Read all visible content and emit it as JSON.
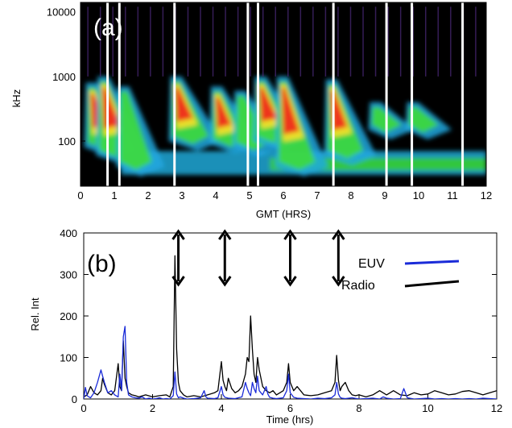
{
  "chart_data": [
    {
      "type": "heatmap",
      "panel_label": "(a)",
      "xlabel": "GMT (HRS)",
      "ylabel": "kHz",
      "xlim": [
        0,
        12
      ],
      "ylim": [
        20,
        14000
      ],
      "yscale": "log",
      "xticks": [
        "0",
        "1",
        "2",
        "3",
        "4",
        "5",
        "6",
        "7",
        "8",
        "9",
        "10",
        "11",
        "12"
      ],
      "yticks": [
        "100",
        "1000",
        "10000"
      ],
      "ytick_values": [
        100,
        1000,
        10000
      ],
      "colormap": "rainbow",
      "background_color": "#000000",
      "bursts": [
        {
          "t": 0.3,
          "f_hi": 800,
          "f_lo": 80,
          "strength": 0.8
        },
        {
          "t": 0.65,
          "f_hi": 1000,
          "f_lo": 60,
          "strength": 1.0
        },
        {
          "t": 1.25,
          "f_hi": 700,
          "f_lo": 40,
          "strength": 0.6
        },
        {
          "t": 2.8,
          "f_hi": 1000,
          "f_lo": 100,
          "strength": 1.0
        },
        {
          "t": 4.0,
          "f_hi": 700,
          "f_lo": 90,
          "strength": 0.8
        },
        {
          "t": 4.7,
          "f_hi": 600,
          "f_lo": 80,
          "strength": 0.7
        },
        {
          "t": 5.3,
          "f_hi": 1000,
          "f_lo": 100,
          "strength": 1.0
        },
        {
          "t": 5.95,
          "f_hi": 1000,
          "f_lo": 40,
          "strength": 1.0
        },
        {
          "t": 7.4,
          "f_hi": 900,
          "f_lo": 60,
          "strength": 0.9
        },
        {
          "t": 8.7,
          "f_hi": 400,
          "f_lo": 150,
          "strength": 0.4
        },
        {
          "t": 9.8,
          "f_hi": 400,
          "f_lo": 150,
          "strength": 0.4
        }
      ],
      "data_gaps": [
        0.8,
        1.15,
        2.78,
        4.95,
        5.25,
        7.48,
        9.05,
        9.8,
        11.3
      ]
    },
    {
      "type": "line",
      "panel_label": "(b)",
      "xlabel": "Time (hrs)",
      "ylabel": "Rel. Int",
      "xlim": [
        0,
        12
      ],
      "ylim": [
        0,
        400
      ],
      "xticks": [
        "0",
        "2",
        "4",
        "6",
        "8",
        "10",
        "12"
      ],
      "yticks": [
        "0",
        "100",
        "200",
        "300",
        "400"
      ],
      "legend_position": "top-right",
      "series": [
        {
          "name": "EUV",
          "color": "#1a2bd8",
          "x": [
            0,
            0.05,
            0.1,
            0.15,
            0.2,
            0.3,
            0.4,
            0.5,
            0.55,
            0.6,
            0.7,
            0.8,
            0.9,
            1.0,
            1.05,
            1.1,
            1.15,
            1.2,
            1.25,
            1.3,
            1.4,
            1.5,
            1.6,
            1.7,
            1.8,
            1.9,
            2.0,
            2.1,
            2.2,
            2.3,
            2.4,
            2.5,
            2.6,
            2.65,
            2.7,
            2.75,
            2.8,
            2.9,
            3.0,
            3.2,
            3.4,
            3.5,
            3.55,
            3.6,
            3.8,
            3.9,
            4.0,
            4.05,
            4.1,
            4.2,
            4.4,
            4.6,
            4.7,
            4.75,
            4.8,
            4.85,
            4.9,
            4.95,
            5.0,
            5.05,
            5.1,
            5.2,
            5.3,
            5.35,
            5.4,
            5.5,
            5.6,
            5.8,
            5.9,
            5.95,
            6.0,
            6.1,
            6.2,
            6.4,
            6.6,
            6.8,
            7.0,
            7.2,
            7.3,
            7.35,
            7.4,
            7.45,
            7.5,
            7.6,
            7.8,
            8.0,
            8.2,
            8.4,
            8.6,
            8.7,
            8.8,
            9.0,
            9.2,
            9.3,
            9.4,
            9.6,
            9.8,
            10.0,
            10.2,
            10.4,
            10.6,
            10.8,
            11.0,
            11.2,
            11.4,
            11.6,
            11.8,
            12.0
          ],
          "y": [
            0,
            28,
            8,
            5,
            3,
            15,
            40,
            70,
            55,
            40,
            15,
            20,
            10,
            5,
            60,
            20,
            150,
            175,
            40,
            10,
            5,
            3,
            2,
            5,
            0,
            2,
            0,
            1,
            3,
            0,
            1,
            0,
            8,
            65,
            12,
            3,
            5,
            2,
            0,
            1,
            3,
            20,
            5,
            2,
            1,
            3,
            30,
            10,
            4,
            2,
            1,
            5,
            40,
            25,
            15,
            8,
            40,
            25,
            15,
            55,
            20,
            10,
            30,
            12,
            4,
            2,
            1,
            3,
            20,
            60,
            15,
            4,
            2,
            1,
            0,
            2,
            1,
            3,
            10,
            40,
            12,
            4,
            2,
            1,
            3,
            0,
            1,
            2,
            0,
            5,
            2,
            0,
            1,
            25,
            3,
            0,
            1,
            2,
            0,
            1,
            0,
            1,
            0,
            1,
            0,
            2,
            1,
            0
          ]
        },
        {
          "name": "Radio",
          "color": "#000000",
          "x": [
            0,
            0.1,
            0.2,
            0.3,
            0.4,
            0.5,
            0.55,
            0.6,
            0.7,
            0.8,
            0.9,
            1.0,
            1.05,
            1.1,
            1.15,
            1.2,
            1.25,
            1.3,
            1.4,
            1.5,
            1.6,
            1.8,
            2.0,
            2.2,
            2.4,
            2.5,
            2.6,
            2.65,
            2.7,
            2.75,
            2.8,
            2.9,
            3.0,
            3.2,
            3.4,
            3.6,
            3.8,
            3.9,
            4.0,
            4.05,
            4.1,
            4.15,
            4.2,
            4.3,
            4.4,
            4.5,
            4.6,
            4.7,
            4.75,
            4.8,
            4.85,
            4.9,
            4.95,
            5.0,
            5.05,
            5.1,
            5.2,
            5.3,
            5.4,
            5.5,
            5.6,
            5.8,
            5.9,
            5.95,
            6.0,
            6.1,
            6.2,
            6.3,
            6.4,
            6.6,
            6.8,
            7.0,
            7.2,
            7.3,
            7.35,
            7.4,
            7.45,
            7.5,
            7.6,
            7.7,
            7.8,
            7.9,
            8.0,
            8.2,
            8.4,
            8.6,
            8.7,
            8.8,
            9.0,
            9.2,
            9.4,
            9.6,
            9.8,
            10.0,
            10.2,
            10.4,
            10.6,
            10.8,
            11.0,
            11.2,
            11.4,
            11.6,
            11.8,
            12.0
          ],
          "y": [
            5,
            10,
            30,
            15,
            10,
            20,
            50,
            35,
            15,
            10,
            20,
            85,
            30,
            20,
            140,
            50,
            30,
            15,
            10,
            8,
            5,
            10,
            5,
            8,
            10,
            5,
            30,
            345,
            120,
            40,
            20,
            10,
            5,
            8,
            5,
            10,
            15,
            20,
            90,
            45,
            30,
            20,
            50,
            25,
            15,
            20,
            30,
            60,
            100,
            90,
            200,
            120,
            60,
            40,
            100,
            70,
            30,
            20,
            15,
            20,
            10,
            20,
            40,
            85,
            40,
            20,
            30,
            20,
            10,
            8,
            10,
            15,
            20,
            40,
            105,
            45,
            20,
            30,
            40,
            20,
            10,
            8,
            10,
            5,
            10,
            20,
            15,
            10,
            20,
            10,
            8,
            15,
            10,
            12,
            20,
            15,
            10,
            12,
            18,
            20,
            15,
            10,
            15,
            20
          ]
        }
      ],
      "annotation_arrows_x": [
        2.75,
        4.1,
        6.0,
        7.4
      ]
    }
  ]
}
